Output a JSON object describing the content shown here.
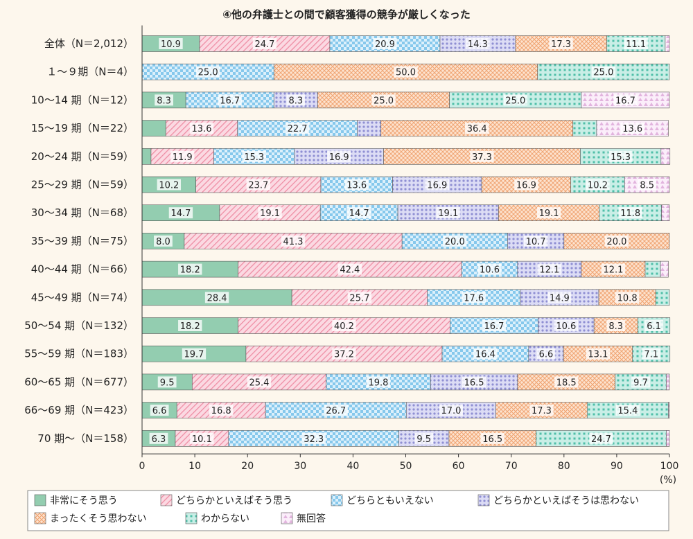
{
  "chart_data": {
    "type": "bar",
    "orientation": "horizontal",
    "stacked": true,
    "title": "④他の弁護士との間で顧客獲得の競争が厳しくなった",
    "xlabel": "(%)",
    "xlim": [
      0,
      100
    ],
    "xticks": [
      0,
      10,
      20,
      30,
      40,
      50,
      60,
      70,
      80,
      90,
      100
    ],
    "categories": [
      "全体（N＝2,012）",
      "１〜９期（N＝4）",
      "10〜14 期（N＝12）",
      "15〜19 期（N＝22）",
      "20〜24 期（N＝59）",
      "25〜29 期（N＝59）",
      "30〜34 期（N＝68）",
      "35〜39 期（N＝75）",
      "40〜44 期（N＝66）",
      "45〜49 期（N＝74）",
      "50〜54 期（N＝132）",
      "55〜59 期（N＝183）",
      "60〜65 期（N＝677）",
      "66〜69 期（N＝423）",
      "70 期〜（N＝158）"
    ],
    "series": [
      {
        "name": "非常にそう思う",
        "color": "#93cdb0",
        "pattern": "solid",
        "values": [
          10.9,
          0,
          8.3,
          4.5,
          1.7,
          10.2,
          14.7,
          8.0,
          18.2,
          28.4,
          18.2,
          19.7,
          9.5,
          6.6,
          6.3
        ],
        "labels": [
          "10.9",
          "",
          "8.3",
          "",
          "",
          "10.2",
          "14.7",
          "8.0",
          "18.2",
          "28.4",
          "18.2",
          "19.7",
          "9.5",
          "6.6",
          "6.3"
        ]
      },
      {
        "name": "どちらかといえばそう思う",
        "color": "#f5a6b8",
        "pattern": "diagonal",
        "values": [
          24.7,
          0,
          0,
          13.6,
          11.9,
          23.7,
          19.1,
          41.3,
          42.4,
          25.7,
          40.2,
          37.2,
          25.4,
          16.8,
          10.1
        ],
        "labels": [
          "24.7",
          "",
          "",
          "13.6",
          "11.9",
          "23.7",
          "19.1",
          "41.3",
          "42.4",
          "25.7",
          "40.2",
          "37.2",
          "25.4",
          "16.8",
          "10.1"
        ]
      },
      {
        "name": "どちらともいえない",
        "color": "#8fcfee",
        "pattern": "checker",
        "values": [
          20.9,
          25.0,
          16.7,
          22.7,
          15.3,
          13.6,
          14.7,
          20.0,
          10.6,
          17.6,
          16.7,
          16.4,
          19.8,
          26.7,
          32.3
        ],
        "labels": [
          "20.9",
          "25.0",
          "16.7",
          "22.7",
          "15.3",
          "13.6",
          "14.7",
          "20.0",
          "10.6",
          "17.6",
          "16.7",
          "16.4",
          "19.8",
          "26.7",
          "32.3"
        ]
      },
      {
        "name": "どちらかといえばそうは思わない",
        "color": "#aeaee3",
        "pattern": "dots",
        "values": [
          14.3,
          0,
          8.3,
          4.5,
          16.9,
          16.9,
          19.1,
          10.7,
          12.1,
          14.9,
          10.6,
          6.6,
          16.5,
          17.0,
          9.5
        ],
        "labels": [
          "14.3",
          "",
          "8.3",
          "",
          "16.9",
          "16.9",
          "19.1",
          "10.7",
          "12.1",
          "14.9",
          "10.6",
          "6.6",
          "16.5",
          "17.0",
          "9.5"
        ]
      },
      {
        "name": "まったくそう思わない",
        "color": "#f6bf96",
        "pattern": "crosshatch",
        "values": [
          17.3,
          50.0,
          25.0,
          36.4,
          37.3,
          16.9,
          19.1,
          20.0,
          12.1,
          10.8,
          8.3,
          13.1,
          18.5,
          17.3,
          16.5
        ],
        "labels": [
          "17.3",
          "50.0",
          "25.0",
          "36.4",
          "37.3",
          "16.9",
          "19.1",
          "20.0",
          "12.1",
          "10.8",
          "8.3",
          "13.1",
          "18.5",
          "17.3",
          "16.5"
        ]
      },
      {
        "name": "わからない",
        "color": "#7ed3c4",
        "pattern": "squares",
        "values": [
          11.1,
          25.0,
          25.0,
          4.5,
          15.3,
          10.2,
          11.8,
          0,
          2.9,
          2.6,
          6.1,
          7.1,
          9.7,
          15.4,
          24.7
        ],
        "labels": [
          "11.1",
          "25.0",
          "25.0",
          "",
          "15.3",
          "10.2",
          "11.8",
          "",
          "",
          "",
          "6.1",
          "7.1",
          "9.7",
          "15.4",
          "24.7"
        ]
      },
      {
        "name": "無回答",
        "color": "#eac9e7",
        "pattern": "triangles",
        "values": [
          0.8,
          0,
          16.7,
          13.6,
          1.7,
          8.5,
          1.5,
          0,
          1.5,
          0,
          0,
          0,
          0.6,
          0.2,
          0.6
        ],
        "labels": [
          "",
          "",
          "16.7",
          "13.6",
          "",
          "8.5",
          "",
          "",
          "",
          "",
          "",
          "",
          "",
          "",
          ""
        ]
      }
    ],
    "legend_position": "bottom",
    "grid": false
  }
}
